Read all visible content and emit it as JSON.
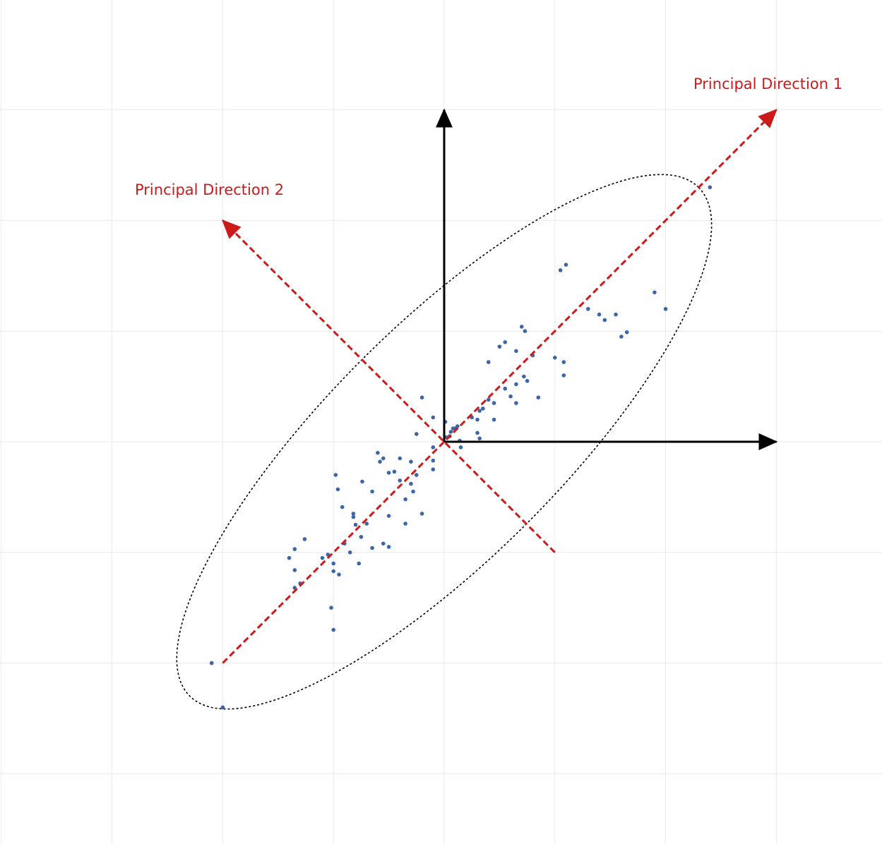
{
  "labels": {
    "pd1": "Principal Direction 1",
    "pd2": "Principal Direction 2"
  },
  "colors": {
    "background": "#ffffff",
    "grid": "#e9e9e9",
    "axes": "#000000",
    "principal": "#cc1a1a",
    "ellipse": "#000000",
    "points": "#3d66a8"
  },
  "grid": {
    "visible": true,
    "step": 1,
    "range": [
      -4,
      3
    ]
  },
  "axes": {
    "x_max": 3,
    "y_max": 3
  },
  "principal_directions": {
    "pd1": {
      "from": [
        -2,
        -2
      ],
      "to": [
        3,
        3
      ]
    },
    "pd2": {
      "from": [
        1,
        -1
      ],
      "to": [
        -2,
        2
      ]
    }
  },
  "ellipse": {
    "center": [
      0,
      0
    ],
    "semi_major": 3.25,
    "semi_minor": 1.05,
    "angle_deg": 45
  },
  "points": [
    [
      2.4,
      2.3
    ],
    [
      1.1,
      1.6
    ],
    [
      1.05,
      1.55
    ],
    [
      2.0,
      1.2
    ],
    [
      1.3,
      1.2
    ],
    [
      1.4,
      1.15
    ],
    [
      1.45,
      1.1
    ],
    [
      1.55,
      1.15
    ],
    [
      1.65,
      0.99
    ],
    [
      1.6,
      0.95
    ],
    [
      0.7,
      1.04
    ],
    [
      0.73,
      1.0
    ],
    [
      0.55,
      0.9
    ],
    [
      0.65,
      0.82
    ],
    [
      0.5,
      0.86
    ],
    [
      1.9,
      1.35
    ],
    [
      1.0,
      0.76
    ],
    [
      0.8,
      0.78
    ],
    [
      1.08,
      0.72
    ],
    [
      1.08,
      0.6
    ],
    [
      0.72,
      0.59
    ],
    [
      0.75,
      0.55
    ],
    [
      0.65,
      0.52
    ],
    [
      0.4,
      0.38
    ],
    [
      0.4,
      0.72
    ],
    [
      0.55,
      0.48
    ],
    [
      0.85,
      0.4
    ],
    [
      0.45,
      0.35
    ],
    [
      0.6,
      0.41
    ],
    [
      0.65,
      0.35
    ],
    [
      0.35,
      0.3
    ],
    [
      0.32,
      0.28
    ],
    [
      0.3,
      0.2
    ],
    [
      0.25,
      0.22
    ],
    [
      0.12,
      0.14
    ],
    [
      0.1,
      0.12
    ],
    [
      0.45,
      0.2
    ],
    [
      0.3,
      0.08
    ],
    [
      0.32,
      0.03
    ],
    [
      -0.2,
      0.4
    ],
    [
      -0.1,
      0.22
    ],
    [
      -0.25,
      0.07
    ],
    [
      0.08,
      0.12
    ],
    [
      0.05,
      0.05
    ],
    [
      0.01,
      0.18
    ],
    [
      0.14,
      0.01
    ],
    [
      0.02,
      0.04
    ],
    [
      0.06,
      0.09
    ],
    [
      0.15,
      -0.05
    ],
    [
      -0.1,
      -0.05
    ],
    [
      -0.3,
      -0.18
    ],
    [
      -0.1,
      -0.17
    ],
    [
      -0.6,
      -0.1
    ],
    [
      -0.4,
      -0.15
    ],
    [
      -0.55,
      -0.15
    ],
    [
      -0.58,
      -0.18
    ],
    [
      -0.5,
      -0.28
    ],
    [
      -0.45,
      -0.27
    ],
    [
      -0.25,
      -0.3
    ],
    [
      -0.4,
      -0.35
    ],
    [
      -0.3,
      -0.38
    ],
    [
      -0.28,
      -0.45
    ],
    [
      -0.35,
      -0.52
    ],
    [
      -0.65,
      -0.45
    ],
    [
      -0.98,
      -0.3
    ],
    [
      -0.74,
      -0.36
    ],
    [
      -0.96,
      -0.43
    ],
    [
      -0.1,
      -0.25
    ],
    [
      -0.5,
      -0.67
    ],
    [
      -0.7,
      -0.74
    ],
    [
      -0.8,
      -0.75
    ],
    [
      -0.35,
      -0.74
    ],
    [
      -0.92,
      -0.59
    ],
    [
      -0.82,
      -0.65
    ],
    [
      -0.82,
      -0.68
    ],
    [
      -0.9,
      -0.92
    ],
    [
      -0.85,
      -1.0
    ],
    [
      -0.75,
      -0.86
    ],
    [
      -0.55,
      -0.92
    ],
    [
      -0.5,
      -0.95
    ],
    [
      -0.65,
      -0.96
    ],
    [
      -1.35,
      -0.97
    ],
    [
      -1.26,
      -0.88
    ],
    [
      -1.35,
      -1.16
    ],
    [
      -1.4,
      -1.05
    ],
    [
      -1.0,
      -1.17
    ],
    [
      -0.77,
      -1.1
    ],
    [
      -1.05,
      -1.02
    ],
    [
      -1.1,
      -1.05
    ],
    [
      -1.3,
      -1.28
    ],
    [
      -1.35,
      -1.32
    ],
    [
      -1.0,
      -1.1
    ],
    [
      -1.02,
      -1.5
    ],
    [
      -1.0,
      -1.7
    ],
    [
      -2.1,
      -2.0
    ],
    [
      -2.0,
      -2.4
    ],
    [
      -0.2,
      -0.65
    ],
    [
      -0.95,
      -1.2
    ]
  ]
}
